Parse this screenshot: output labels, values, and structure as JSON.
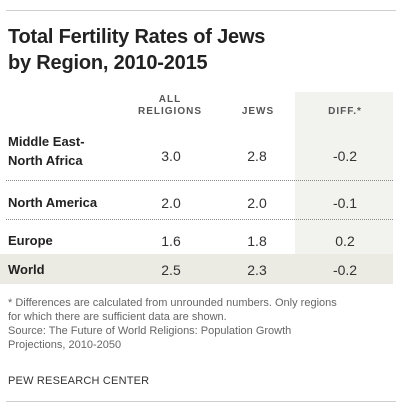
{
  "title_line1": "Total Fertility Rates of Jews",
  "title_line2": "by Region, 2010-2015",
  "chart_data": {
    "type": "table",
    "title": "Total Fertility Rates of Jews by Region, 2010-2015",
    "columns": [
      "ALL RELIGIONS",
      "JEWS",
      "DIFF.*"
    ],
    "column_header_lines": [
      [
        "ALL",
        "RELIGIONS"
      ],
      [
        "JEWS"
      ],
      [
        "DIFF.*"
      ]
    ],
    "rows": [
      {
        "region_lines": [
          "Middle East-",
          "North Africa"
        ],
        "all_religions": "3.0",
        "jews": "2.8",
        "diff": "-0.2"
      },
      {
        "region_lines": [
          "North America"
        ],
        "all_religions": "2.0",
        "jews": "2.0",
        "diff": "-0.1"
      },
      {
        "region_lines": [
          "Europe"
        ],
        "all_religions": "1.6",
        "jews": "1.8",
        "diff": "0.2"
      },
      {
        "region_lines": [
          "World"
        ],
        "all_religions": "2.5",
        "jews": "2.3",
        "diff": "-0.2"
      }
    ]
  },
  "notes": {
    "line1": "* Differences are calculated from unrounded numbers. Only regions",
    "line2": "for which there are sufficient data are shown.",
    "line3": "Source: The Future of World Religions: Population Growth",
    "line4": "Projections, 2010-2050"
  },
  "brand": "PEW RESEARCH CENTER",
  "colors": {
    "diff_column_shade": "#f2f2ee",
    "world_row_shade": "#ebebe3",
    "rule": "#cfcfcf"
  }
}
